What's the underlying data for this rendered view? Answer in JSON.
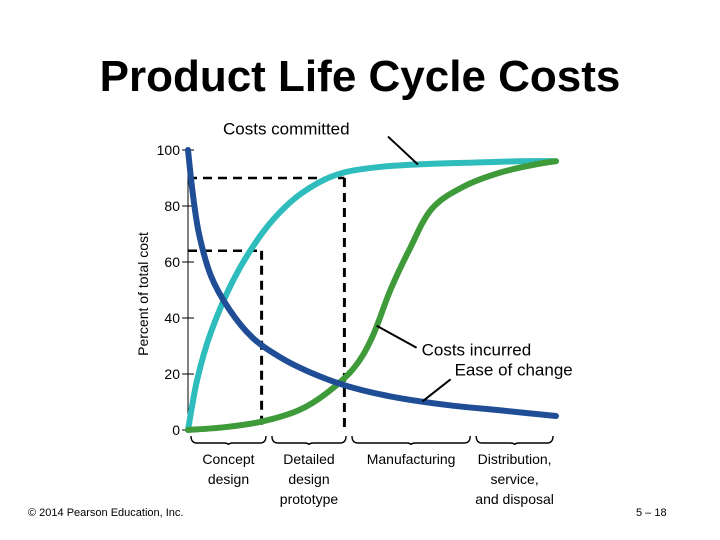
{
  "slide": {
    "title": "Product Life Cycle Costs",
    "copyright": "© 2014 Pearson Education, Inc.",
    "page_number": "5 – 18"
  },
  "chart_data": {
    "type": "line",
    "title": "",
    "ylabel": "Percent of total cost",
    "xlabel": "",
    "ylim": [
      0,
      100
    ],
    "yticks": [
      0,
      20,
      40,
      60,
      80,
      100
    ],
    "xlim": [
      0,
      4
    ],
    "phases": [
      {
        "label_lines": [
          "Concept",
          "design"
        ],
        "start": 0,
        "end": 0.88
      },
      {
        "label_lines": [
          "Detailed",
          "design",
          "prototype"
        ],
        "start": 0.88,
        "end": 1.75
      },
      {
        "label_lines": [
          "Manufacturing"
        ],
        "start": 1.75,
        "end": 3.1
      },
      {
        "label_lines": [
          "Distribution,",
          "service,",
          "and disposal"
        ],
        "start": 3.1,
        "end": 4.0
      }
    ],
    "reference_lines": [
      {
        "x": 0.8,
        "y": 64
      },
      {
        "x": 1.7,
        "y": 90
      }
    ],
    "series": [
      {
        "name": "Costs committed",
        "color": "#2fbcbc",
        "points": [
          [
            0,
            0
          ],
          [
            0.1,
            18
          ],
          [
            0.25,
            35
          ],
          [
            0.5,
            54
          ],
          [
            0.8,
            70
          ],
          [
            1.1,
            81
          ],
          [
            1.4,
            88
          ],
          [
            1.7,
            92
          ],
          [
            2.1,
            94
          ],
          [
            2.6,
            95
          ],
          [
            3.1,
            95.5
          ],
          [
            3.6,
            96
          ],
          [
            4.0,
            96
          ]
        ]
      },
      {
        "name": "Costs incurred",
        "color": "#3f9a3a",
        "points": [
          [
            0,
            0
          ],
          [
            0.4,
            1
          ],
          [
            0.8,
            3
          ],
          [
            1.2,
            7
          ],
          [
            1.5,
            13
          ],
          [
            1.8,
            22
          ],
          [
            2.0,
            33
          ],
          [
            2.2,
            50
          ],
          [
            2.4,
            64
          ],
          [
            2.65,
            79
          ],
          [
            3.0,
            87
          ],
          [
            3.4,
            92
          ],
          [
            3.8,
            95
          ],
          [
            4.0,
            96
          ]
        ]
      },
      {
        "name": "Ease of change",
        "color": "#1f4e96",
        "points": [
          [
            0,
            100
          ],
          [
            0.05,
            85
          ],
          [
            0.12,
            70
          ],
          [
            0.25,
            55
          ],
          [
            0.45,
            43
          ],
          [
            0.7,
            33
          ],
          [
            1.0,
            26
          ],
          [
            1.3,
            21
          ],
          [
            1.7,
            16
          ],
          [
            2.2,
            12
          ],
          [
            2.8,
            9
          ],
          [
            3.4,
            7
          ],
          [
            4.0,
            5
          ]
        ]
      }
    ],
    "annotations": [
      {
        "text": "Costs committed",
        "series": "Costs committed",
        "at_x": 2.5
      },
      {
        "text": "Costs incurred",
        "series": "Costs incurred",
        "at_x": 2.05
      },
      {
        "text": "Ease of change",
        "series": "Ease of change",
        "at_x": 2.55
      }
    ],
    "grid": false,
    "legend": "none"
  }
}
